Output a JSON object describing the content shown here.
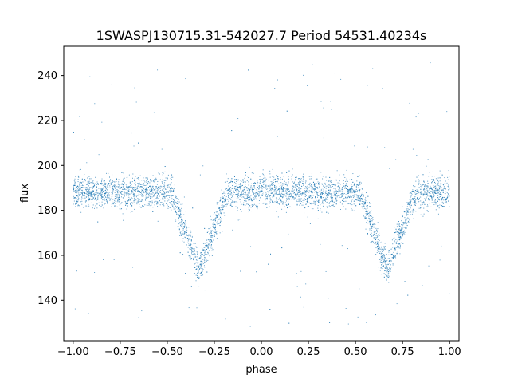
{
  "chart_data": {
    "type": "scatter",
    "title": "1SWASPJ130715.31-542027.7 Period 54531.40234s",
    "xlabel": "phase",
    "ylabel": "flux",
    "xlim": [
      -1.05,
      1.05
    ],
    "ylim": [
      122,
      253
    ],
    "x_ticks": [
      -1.0,
      -0.75,
      -0.5,
      -0.25,
      0.0,
      0.25,
      0.5,
      0.75,
      1.0
    ],
    "x_tick_labels": [
      "−1.00",
      "−0.75",
      "−0.50",
      "−0.25",
      "0.00",
      "0.25",
      "0.50",
      "0.75",
      "1.00"
    ],
    "y_ticks": [
      140,
      160,
      180,
      200,
      220,
      240
    ],
    "y_tick_labels": [
      "140",
      "160",
      "180",
      "200",
      "220",
      "240"
    ],
    "grid": false,
    "marker_color": "#1f77b4",
    "light_curve": {
      "baseline_flux": 188,
      "baseline_scatter": 3.5,
      "eclipse_minima": [
        {
          "phase": -0.33,
          "flux": 154
        },
        {
          "phase": 0.67,
          "flux": 154
        }
      ],
      "eclipse_half_width": 0.15,
      "outlier_flux_range": [
        128,
        246
      ]
    }
  }
}
